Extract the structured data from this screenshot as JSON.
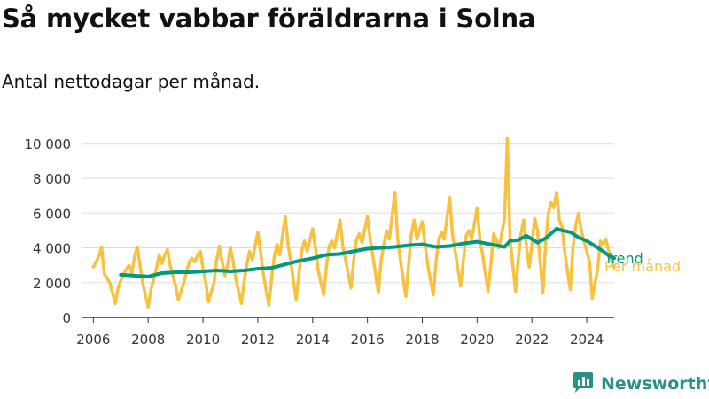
{
  "title": "Så mycket vabbar föräldrarna i Solna",
  "subtitle": "Antal nettodagar per månad.",
  "brand": {
    "name": "Newsworthy",
    "icon": "newsworthy-logo-icon"
  },
  "colors": {
    "monthly": "#f9c140",
    "trend": "#00987f",
    "axis": "#333333",
    "grid": "#dddddd",
    "brand": "#2b8f8a"
  },
  "chart_data": {
    "type": "line",
    "y_ticks": [
      "0",
      "2 000",
      "4 000",
      "6 000",
      "8 000",
      "10 000"
    ],
    "y_tick_values": [
      0,
      2000,
      4000,
      6000,
      8000,
      10000
    ],
    "x_ticks": [
      "2006",
      "2008",
      "2010",
      "2012",
      "2014",
      "2016",
      "2018",
      "2020",
      "2022",
      "2024"
    ],
    "x_tick_values": [
      2006,
      2008,
      2010,
      2012,
      2014,
      2016,
      2018,
      2020,
      2022,
      2024
    ],
    "xlim": [
      2005.6,
      2025.0
    ],
    "ylim": [
      0,
      10600
    ],
    "grid": true,
    "legend_position": "right end of lines",
    "series": [
      {
        "name": "Per månad",
        "points": [
          [
            2006.0,
            2900
          ],
          [
            2006.2,
            3500
          ],
          [
            2006.3,
            4050
          ],
          [
            2006.4,
            2500
          ],
          [
            2006.6,
            2000
          ],
          [
            2006.8,
            800
          ],
          [
            2006.9,
            1700
          ],
          [
            2007.1,
            2500
          ],
          [
            2007.3,
            3000
          ],
          [
            2007.4,
            2500
          ],
          [
            2007.5,
            3500
          ],
          [
            2007.6,
            4050
          ],
          [
            2007.7,
            3000
          ],
          [
            2007.8,
            2000
          ],
          [
            2008.0,
            600
          ],
          [
            2008.1,
            1600
          ],
          [
            2008.3,
            2800
          ],
          [
            2008.4,
            3600
          ],
          [
            2008.5,
            3100
          ],
          [
            2008.6,
            3600
          ],
          [
            2008.7,
            3900
          ],
          [
            2008.8,
            3000
          ],
          [
            2009.0,
            1800
          ],
          [
            2009.1,
            1000
          ],
          [
            2009.3,
            2000
          ],
          [
            2009.5,
            3200
          ],
          [
            2009.6,
            3400
          ],
          [
            2009.7,
            3200
          ],
          [
            2009.8,
            3600
          ],
          [
            2009.9,
            3800
          ],
          [
            2010.0,
            2800
          ],
          [
            2010.1,
            2000
          ],
          [
            2010.2,
            900
          ],
          [
            2010.4,
            2000
          ],
          [
            2010.5,
            3300
          ],
          [
            2010.6,
            4100
          ],
          [
            2010.7,
            3200
          ],
          [
            2010.8,
            2400
          ],
          [
            2010.9,
            3000
          ],
          [
            2011.0,
            4000
          ],
          [
            2011.1,
            3200
          ],
          [
            2011.2,
            2200
          ],
          [
            2011.4,
            800
          ],
          [
            2011.5,
            2100
          ],
          [
            2011.6,
            3100
          ],
          [
            2011.7,
            3800
          ],
          [
            2011.8,
            3300
          ],
          [
            2012.0,
            4900
          ],
          [
            2012.1,
            3800
          ],
          [
            2012.2,
            2500
          ],
          [
            2012.4,
            700
          ],
          [
            2012.5,
            2200
          ],
          [
            2012.6,
            3500
          ],
          [
            2012.7,
            4200
          ],
          [
            2012.8,
            3600
          ],
          [
            2013.0,
            5800
          ],
          [
            2013.1,
            4200
          ],
          [
            2013.2,
            3200
          ],
          [
            2013.4,
            1000
          ],
          [
            2013.5,
            2500
          ],
          [
            2013.6,
            3800
          ],
          [
            2013.7,
            4400
          ],
          [
            2013.8,
            3800
          ],
          [
            2014.0,
            5100
          ],
          [
            2014.1,
            4000
          ],
          [
            2014.2,
            2700
          ],
          [
            2014.4,
            1300
          ],
          [
            2014.5,
            2900
          ],
          [
            2014.6,
            4100
          ],
          [
            2014.7,
            4400
          ],
          [
            2014.8,
            4000
          ],
          [
            2015.0,
            5600
          ],
          [
            2015.1,
            4100
          ],
          [
            2015.2,
            3300
          ],
          [
            2015.4,
            1700
          ],
          [
            2015.5,
            3300
          ],
          [
            2015.6,
            4500
          ],
          [
            2015.7,
            4800
          ],
          [
            2015.8,
            4300
          ],
          [
            2016.0,
            5800
          ],
          [
            2016.1,
            4500
          ],
          [
            2016.2,
            3500
          ],
          [
            2016.4,
            1400
          ],
          [
            2016.5,
            3300
          ],
          [
            2016.6,
            4200
          ],
          [
            2016.7,
            5000
          ],
          [
            2016.8,
            4500
          ],
          [
            2017.0,
            7200
          ],
          [
            2017.1,
            4500
          ],
          [
            2017.2,
            3300
          ],
          [
            2017.4,
            1200
          ],
          [
            2017.5,
            3000
          ],
          [
            2017.6,
            4800
          ],
          [
            2017.7,
            5600
          ],
          [
            2017.8,
            4500
          ],
          [
            2018.0,
            5500
          ],
          [
            2018.1,
            4200
          ],
          [
            2018.2,
            3000
          ],
          [
            2018.4,
            1300
          ],
          [
            2018.5,
            3200
          ],
          [
            2018.6,
            4500
          ],
          [
            2018.7,
            4900
          ],
          [
            2018.8,
            4500
          ],
          [
            2019.0,
            6900
          ],
          [
            2019.1,
            4800
          ],
          [
            2019.2,
            3800
          ],
          [
            2019.4,
            1800
          ],
          [
            2019.5,
            3300
          ],
          [
            2019.6,
            4700
          ],
          [
            2019.7,
            5000
          ],
          [
            2019.8,
            4500
          ],
          [
            2020.0,
            6300
          ],
          [
            2020.1,
            4500
          ],
          [
            2020.2,
            3600
          ],
          [
            2020.4,
            1500
          ],
          [
            2020.5,
            3000
          ],
          [
            2020.6,
            4800
          ],
          [
            2020.7,
            4500
          ],
          [
            2020.8,
            4000
          ],
          [
            2021.0,
            5700
          ],
          [
            2021.1,
            10300
          ],
          [
            2021.2,
            4500
          ],
          [
            2021.4,
            1500
          ],
          [
            2021.5,
            3400
          ],
          [
            2021.6,
            4800
          ],
          [
            2021.7,
            5600
          ],
          [
            2021.8,
            4100
          ],
          [
            2021.9,
            2900
          ],
          [
            2022.0,
            4200
          ],
          [
            2022.1,
            5700
          ],
          [
            2022.2,
            5000
          ],
          [
            2022.4,
            1400
          ],
          [
            2022.5,
            4300
          ],
          [
            2022.6,
            6000
          ],
          [
            2022.7,
            6600
          ],
          [
            2022.8,
            6300
          ],
          [
            2022.9,
            7200
          ],
          [
            2023.0,
            5600
          ],
          [
            2023.1,
            5200
          ],
          [
            2023.2,
            3700
          ],
          [
            2023.4,
            1600
          ],
          [
            2023.5,
            4100
          ],
          [
            2023.6,
            5300
          ],
          [
            2023.7,
            6000
          ],
          [
            2023.8,
            5000
          ],
          [
            2024.0,
            3800
          ],
          [
            2024.1,
            3200
          ],
          [
            2024.2,
            1100
          ],
          [
            2024.4,
            2800
          ],
          [
            2024.5,
            4400
          ],
          [
            2024.6,
            4200
          ],
          [
            2024.7,
            4500
          ],
          [
            2024.8,
            3800
          ],
          [
            2024.9,
            3300
          ],
          [
            2025.0,
            2900
          ]
        ]
      },
      {
        "name": "Trend",
        "points": [
          [
            2007.0,
            2450
          ],
          [
            2007.5,
            2400
          ],
          [
            2008.0,
            2350
          ],
          [
            2008.5,
            2550
          ],
          [
            2009.0,
            2600
          ],
          [
            2009.5,
            2600
          ],
          [
            2010.0,
            2650
          ],
          [
            2010.5,
            2700
          ],
          [
            2011.0,
            2650
          ],
          [
            2011.5,
            2700
          ],
          [
            2012.0,
            2800
          ],
          [
            2012.5,
            2850
          ],
          [
            2013.0,
            3050
          ],
          [
            2013.5,
            3250
          ],
          [
            2014.0,
            3400
          ],
          [
            2014.5,
            3600
          ],
          [
            2015.0,
            3650
          ],
          [
            2015.5,
            3800
          ],
          [
            2016.0,
            3950
          ],
          [
            2016.5,
            4000
          ],
          [
            2017.0,
            4050
          ],
          [
            2017.5,
            4150
          ],
          [
            2018.0,
            4200
          ],
          [
            2018.5,
            4050
          ],
          [
            2019.0,
            4100
          ],
          [
            2019.5,
            4250
          ],
          [
            2020.0,
            4350
          ],
          [
            2020.5,
            4200
          ],
          [
            2021.0,
            4050
          ],
          [
            2021.2,
            4400
          ],
          [
            2021.5,
            4450
          ],
          [
            2021.8,
            4700
          ],
          [
            2022.0,
            4500
          ],
          [
            2022.2,
            4300
          ],
          [
            2022.5,
            4550
          ],
          [
            2022.9,
            5100
          ],
          [
            2023.1,
            5000
          ],
          [
            2023.4,
            4900
          ],
          [
            2023.7,
            4600
          ],
          [
            2024.0,
            4400
          ],
          [
            2024.3,
            4100
          ],
          [
            2024.6,
            3800
          ],
          [
            2024.8,
            3550
          ],
          [
            2025.0,
            3400
          ]
        ]
      }
    ]
  }
}
